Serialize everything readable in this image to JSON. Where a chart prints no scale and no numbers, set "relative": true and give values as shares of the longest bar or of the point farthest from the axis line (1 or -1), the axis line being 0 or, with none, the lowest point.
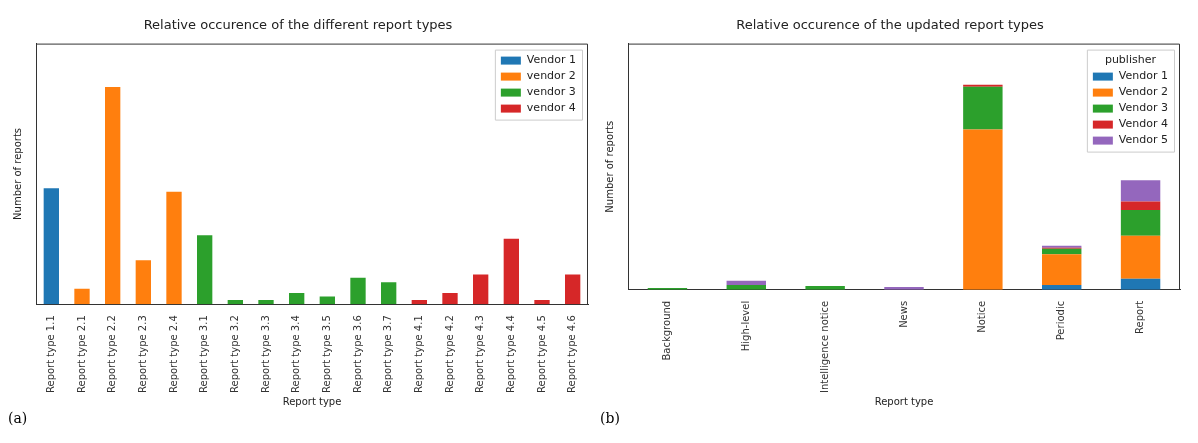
{
  "chart_data": [
    {
      "type": "bar",
      "title": "Relative occurence of the different report types",
      "xlabel": "Report type",
      "ylabel": "Number of reports",
      "relative": true,
      "stacked": true,
      "legend": "top right",
      "annotations": [
        "(a)"
      ],
      "categories": [
        "Report type 1.1",
        "Report type 2.1",
        "Report type 2.2",
        "Report type 2.3",
        "Report type 2.4",
        "Report type 3.1",
        "Report type 3.2",
        "Report type 3.3",
        "Report type 3.4",
        "Report type 3.5",
        "Report type 3.6",
        "Report type 3.7",
        "Report type 4.1",
        "Report type 4.2",
        "Report type 4.3",
        "Report type 4.4",
        "Report type 4.5",
        "Report type 4.6"
      ],
      "series": [
        {
          "name": "Vendor 1",
          "color": "#1f77b4",
          "values": [
            0.534,
            null,
            null,
            null,
            null,
            null,
            null,
            null,
            null,
            null,
            null,
            null,
            null,
            null,
            null,
            null,
            null,
            null
          ]
        },
        {
          "name": "vendor 2",
          "color": "#ff7f0e",
          "values": [
            null,
            0.071,
            1,
            0.203,
            0.518,
            null,
            null,
            null,
            null,
            null,
            null,
            null,
            null,
            null,
            null,
            null,
            null,
            null
          ]
        },
        {
          "name": "vendor 3",
          "color": "#2ca02c",
          "values": [
            null,
            null,
            null,
            null,
            null,
            0.318,
            0.02,
            0.02,
            0.052,
            0.036,
            0.122,
            0.101,
            null,
            null,
            null,
            null,
            null,
            null
          ]
        },
        {
          "name": "vendor 4",
          "color": "#d62728",
          "values": [
            null,
            null,
            null,
            null,
            null,
            null,
            null,
            null,
            null,
            null,
            null,
            null,
            0.02,
            0.052,
            0.137,
            0.302,
            0.02,
            0.137
          ]
        }
      ]
    },
    {
      "type": "bar",
      "title": "Relative occurence of the updated report types",
      "xlabel": "Report type",
      "ylabel": "Number of reports",
      "relative": true,
      "stacked": true,
      "legend": "top right",
      "legend_title": "publisher",
      "annotations": [
        "(b)"
      ],
      "categories": [
        "Background",
        "High-level",
        "Intelligence notice",
        "News",
        "Notice",
        "Periodic",
        "Report"
      ],
      "series": [
        {
          "name": "Vendor 1",
          "color": "#1f77b4",
          "values": [
            null,
            null,
            null,
            null,
            null,
            0.024,
            0.054
          ]
        },
        {
          "name": "Vendor 2",
          "color": "#ff7f0e",
          "values": [
            null,
            null,
            null,
            null,
            0.781,
            0.15,
            0.209
          ]
        },
        {
          "name": "Vendor 3",
          "color": "#2ca02c",
          "values": [
            0.009,
            0.024,
            0.019,
            null,
            0.209,
            0.026,
            0.126
          ]
        },
        {
          "name": "Vendor 4",
          "color": "#d62728",
          "values": [
            null,
            null,
            null,
            null,
            0.01,
            0.005,
            0.041
          ]
        },
        {
          "name": "Vendor 5",
          "color": "#9467bd",
          "values": [
            null,
            0.02,
            null,
            0.014,
            null,
            0.01,
            0.104
          ]
        }
      ]
    }
  ]
}
